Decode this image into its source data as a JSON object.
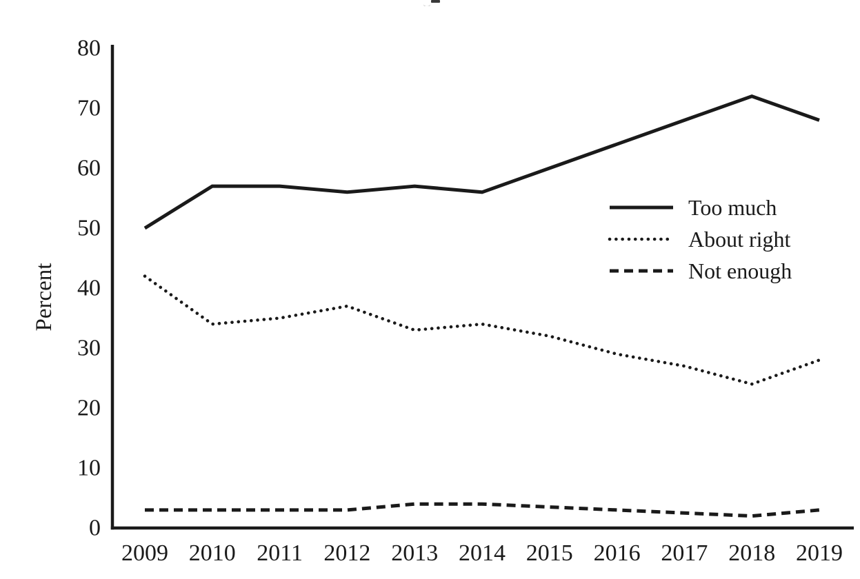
{
  "chart_data": {
    "type": "line",
    "title": "",
    "xlabel": "",
    "ylabel": "Percent",
    "x": [
      "2009",
      "2010",
      "2011",
      "2012",
      "2013",
      "2014",
      "2015",
      "2016",
      "2017",
      "2018",
      "2019"
    ],
    "series": [
      {
        "name": "Too much",
        "style": "solid",
        "values": [
          50,
          57,
          57,
          56,
          57,
          56,
          60,
          64,
          68,
          72,
          68
        ]
      },
      {
        "name": "About right",
        "style": "dotted",
        "values": [
          42,
          34,
          35,
          37,
          33,
          34,
          32,
          29,
          27,
          24,
          28
        ]
      },
      {
        "name": "Not enough",
        "style": "dashed",
        "values": [
          3,
          3,
          3,
          3,
          4,
          4,
          3.5,
          3,
          2.5,
          2,
          3
        ]
      }
    ],
    "ylim": [
      0,
      80
    ],
    "ytick_step": 10,
    "ytick_labels": [
      "0",
      "10",
      "20",
      "30",
      "40",
      "50",
      "60",
      "70",
      "80"
    ],
    "grid": false,
    "legend_position": "center-right",
    "line_color": "#1a1a1a",
    "background_color": "#ffffff"
  }
}
